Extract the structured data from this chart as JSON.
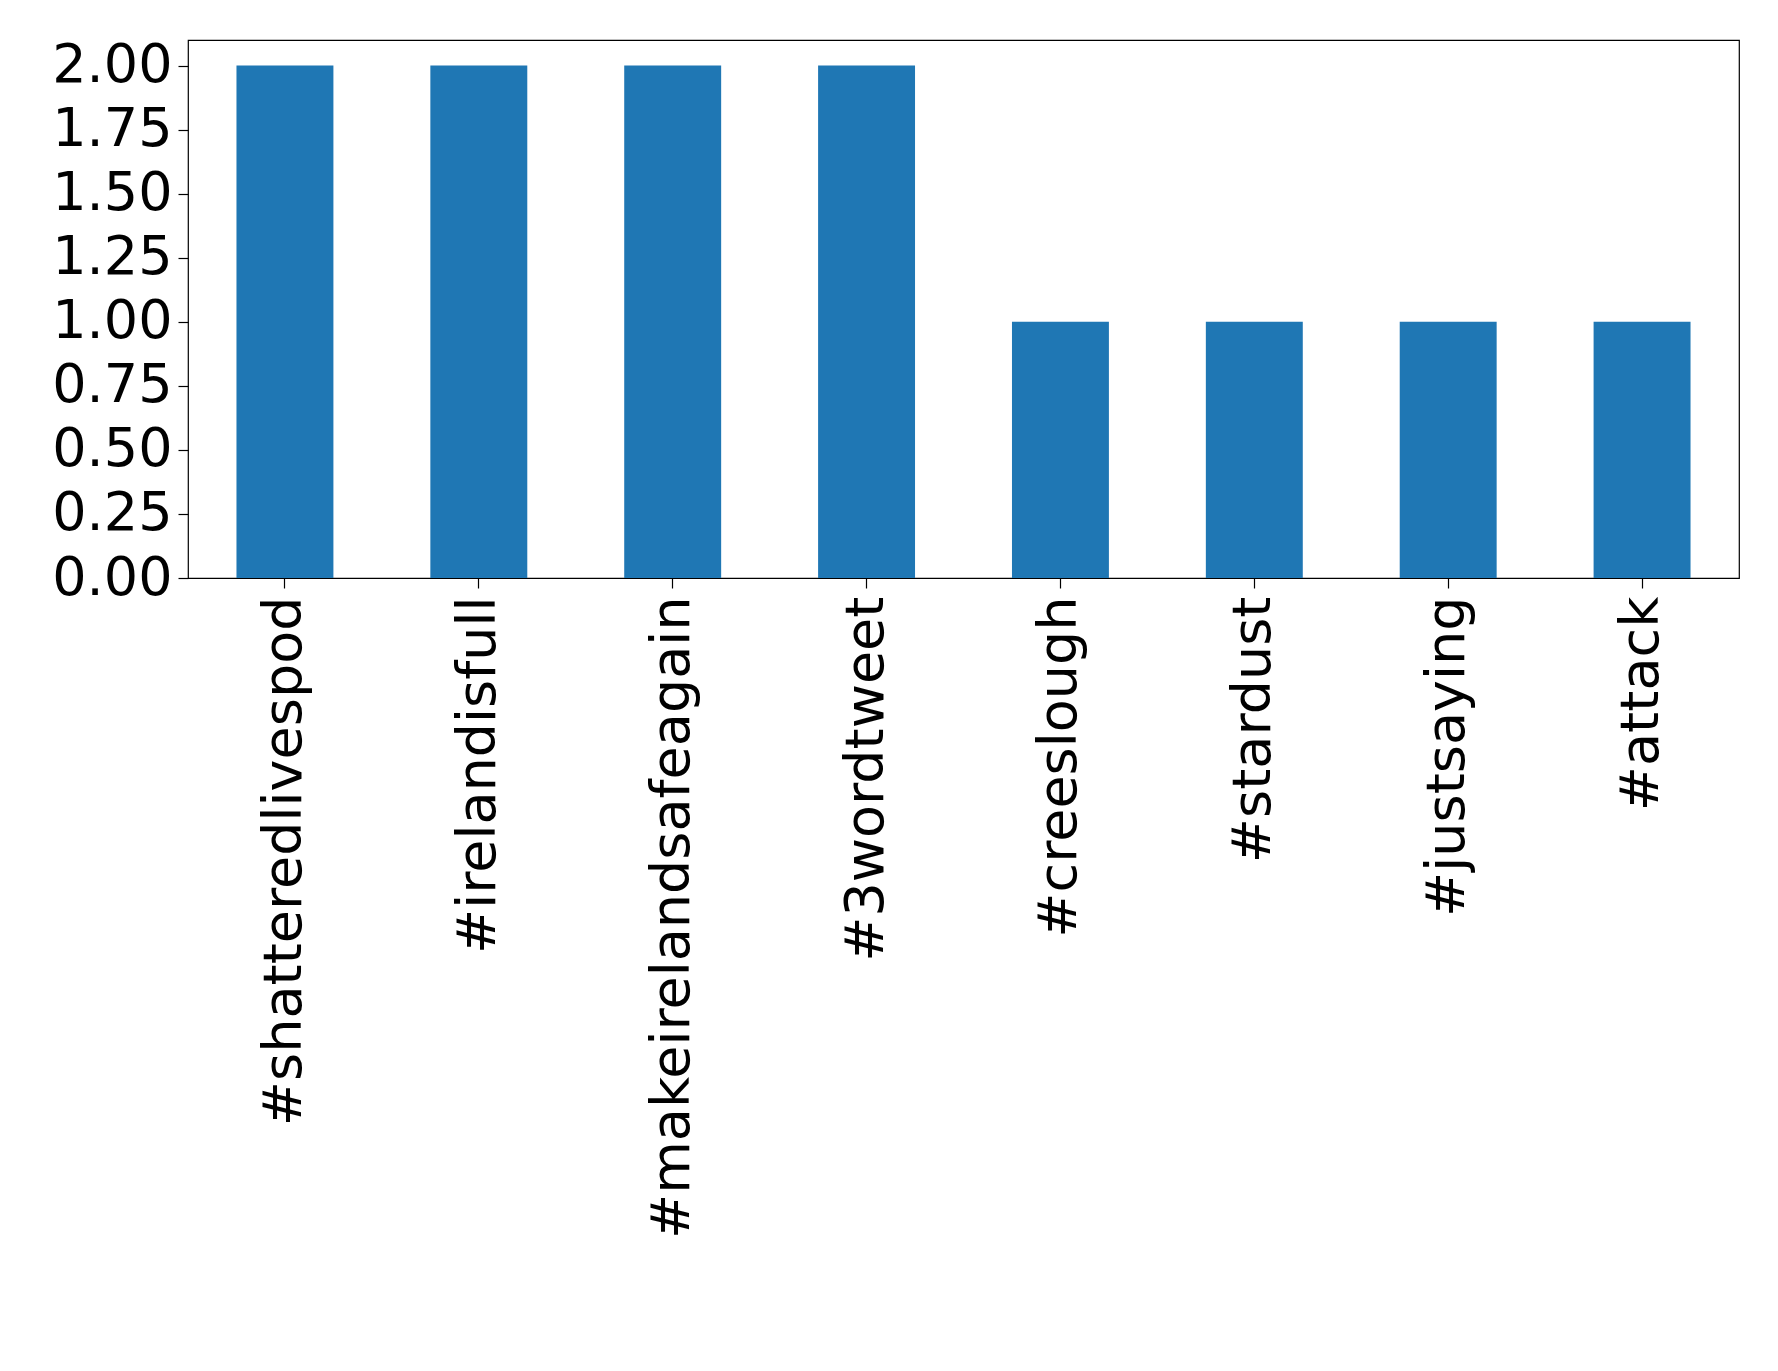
{
  "chart_data": {
    "type": "bar",
    "categories": [
      "#shatteredlivespod",
      "#irelandisfull",
      "#makeirelandsafeagain",
      "#3wordtweet",
      "#creeslough",
      "#stardust",
      "#justsaying",
      "#attack"
    ],
    "values": [
      2,
      2,
      2,
      2,
      1,
      1,
      1,
      1
    ],
    "color": "#1f77b4",
    "ylim": [
      0,
      2.1
    ],
    "yticks": [
      {
        "value": 0,
        "label": "0.00"
      },
      {
        "value": 0.25,
        "label": "0.25"
      },
      {
        "value": 0.5,
        "label": "0.50"
      },
      {
        "value": 0.75,
        "label": "0.75"
      },
      {
        "value": 1,
        "label": "1.00"
      },
      {
        "value": 1.25,
        "label": "1.25"
      },
      {
        "value": 1.5,
        "label": "1.50"
      },
      {
        "value": 1.75,
        "label": "1.75"
      },
      {
        "value": 2,
        "label": "2.00"
      }
    ],
    "grid": false
  }
}
